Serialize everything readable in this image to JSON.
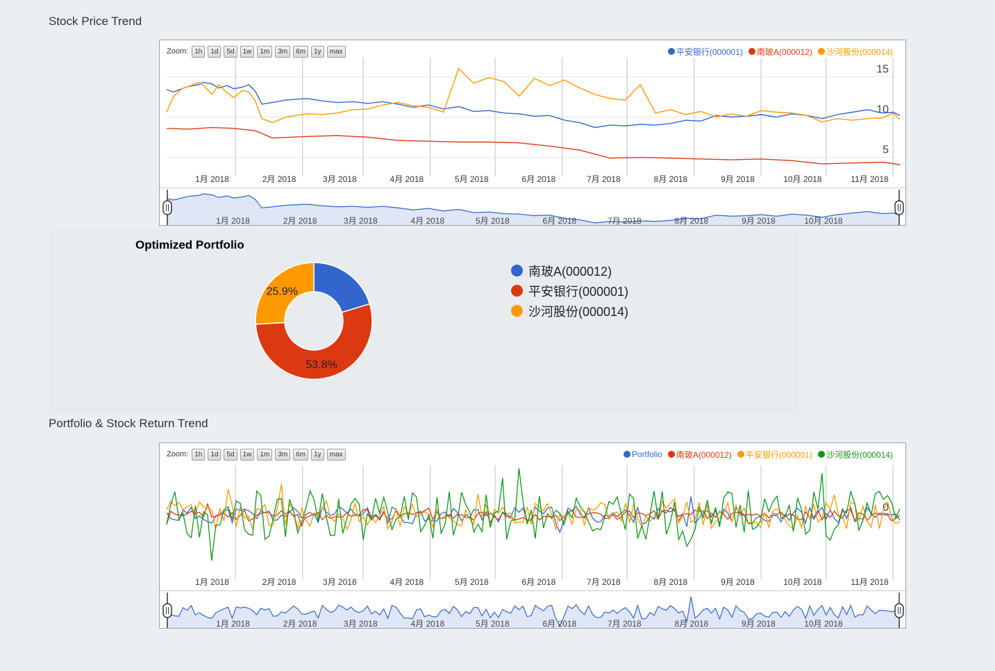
{
  "section1_title": "Stock Price Trend",
  "section2_title": "Portfolio & Stock Return Trend",
  "zoom": {
    "label": "Zoom:",
    "buttons": [
      "1h",
      "1d",
      "5d",
      "1w",
      "1m",
      "3m",
      "6m",
      "1y",
      "max"
    ]
  },
  "months": [
    "1月 2018",
    "2月 2018",
    "3月 2018",
    "4月 2018",
    "5月 2018",
    "6月 2018",
    "7月 2018",
    "8月 2018",
    "9月 2018",
    "10月 2018",
    "11月 2018"
  ],
  "colors": {
    "blue": "#3366cc",
    "red": "#dc3912",
    "orange": "#ff9900",
    "green": "#109618",
    "range_fill": "#dfe6f5"
  },
  "price_chart": {
    "legend": [
      {
        "label": "平安银行(000001)",
        "color": "#3366cc"
      },
      {
        "label": "南玻A(000012)",
        "color": "#dc3912"
      },
      {
        "label": "沙河股份(000014)",
        "color": "#ff9900"
      }
    ]
  },
  "pie": {
    "title": "Optimized Portfolio",
    "legend": [
      {
        "label": "南玻A(000012)",
        "color": "#3366cc"
      },
      {
        "label": "平安银行(000001)",
        "color": "#dc3912"
      },
      {
        "label": "沙河股份(000014)",
        "color": "#ff9900"
      }
    ]
  },
  "return_chart": {
    "legend": [
      {
        "label": "Portfolio",
        "color": "#3366cc"
      },
      {
        "label": "南玻A(000012)",
        "color": "#dc3912"
      },
      {
        "label": "平安银行(000001)",
        "color": "#ff9900"
      },
      {
        "label": "沙河股份(000014)",
        "color": "#109618"
      }
    ]
  },
  "chart_data": [
    {
      "type": "line",
      "title": "Stock Price Trend",
      "x_range": [
        "2017-12-19",
        "2018-11-23"
      ],
      "x_ticks": [
        "1月 2018",
        "2月 2018",
        "3月 2018",
        "4月 2018",
        "5月 2018",
        "6月 2018",
        "7月 2018",
        "8月 2018",
        "9月 2018",
        "10月 2018",
        "11月 2018"
      ],
      "y_ticks": [
        5,
        10,
        15
      ],
      "ylim": [
        3.5,
        16.5
      ],
      "series": [
        {
          "name": "平安银行(000001)",
          "color": "#3366cc",
          "x": [
            "2017-12-19",
            "2017-12-22",
            "2017-12-26",
            "2017-12-29",
            "2018-01-03",
            "2018-01-05",
            "2018-01-09",
            "2018-01-12",
            "2018-01-16",
            "2018-01-19",
            "2018-01-23",
            "2018-01-26",
            "2018-01-29",
            "2018-02-01",
            "2018-02-06",
            "2018-02-12",
            "2018-02-22",
            "2018-03-01",
            "2018-03-08",
            "2018-03-15",
            "2018-03-22",
            "2018-03-29",
            "2018-04-05",
            "2018-04-12",
            "2018-04-19",
            "2018-04-26",
            "2018-05-03",
            "2018-05-10",
            "2018-05-17",
            "2018-05-24",
            "2018-05-31",
            "2018-06-07",
            "2018-06-14",
            "2018-06-21",
            "2018-06-28",
            "2018-07-05",
            "2018-07-12",
            "2018-07-19",
            "2018-07-26",
            "2018-08-02",
            "2018-08-09",
            "2018-08-16",
            "2018-08-23",
            "2018-08-30",
            "2018-09-06",
            "2018-09-13",
            "2018-09-20",
            "2018-09-27",
            "2018-10-04",
            "2018-10-11",
            "2018-10-18",
            "2018-10-25",
            "2018-11-01",
            "2018-11-08",
            "2018-11-15",
            "2018-11-20",
            "2018-11-23"
          ],
          "values": [
            13.4,
            13.1,
            13.5,
            13.8,
            14.0,
            14.3,
            14.1,
            13.6,
            13.9,
            13.5,
            13.7,
            14.0,
            13.2,
            11.6,
            11.8,
            12.1,
            12.3,
            12.0,
            11.8,
            11.9,
            11.7,
            11.9,
            11.6,
            11.2,
            11.5,
            11.0,
            11.3,
            10.7,
            10.8,
            10.5,
            10.4,
            10.1,
            10.2,
            9.6,
            9.3,
            8.7,
            9.0,
            8.9,
            9.1,
            9.0,
            9.2,
            9.6,
            9.5,
            10.2,
            10.0,
            10.1,
            10.3,
            10.0,
            10.4,
            10.2,
            9.8,
            10.3,
            10.6,
            10.9,
            10.5,
            10.6,
            10.2
          ]
        },
        {
          "name": "南玻A(000012)",
          "color": "#dc3912",
          "x": [
            "2017-12-19",
            "2017-12-29",
            "2018-01-09",
            "2018-01-19",
            "2018-01-29",
            "2018-02-06",
            "2018-02-22",
            "2018-03-08",
            "2018-03-22",
            "2018-04-05",
            "2018-04-19",
            "2018-05-03",
            "2018-05-17",
            "2018-05-31",
            "2018-06-14",
            "2018-06-28",
            "2018-07-12",
            "2018-07-26",
            "2018-08-09",
            "2018-08-23",
            "2018-09-06",
            "2018-09-20",
            "2018-10-04",
            "2018-10-18",
            "2018-11-01",
            "2018-11-15",
            "2018-11-23"
          ],
          "values": [
            8.6,
            8.5,
            8.7,
            8.6,
            8.3,
            7.4,
            7.6,
            7.7,
            7.5,
            7.1,
            7.0,
            6.9,
            6.9,
            6.8,
            6.4,
            5.9,
            4.9,
            5.0,
            4.9,
            4.8,
            4.7,
            4.8,
            4.6,
            4.2,
            4.3,
            4.4,
            4.1
          ]
        },
        {
          "name": "沙河股份(000014)",
          "color": "#ff9900",
          "x": [
            "2017-12-19",
            "2017-12-22",
            "2017-12-26",
            "2017-12-29",
            "2018-01-03",
            "2018-01-05",
            "2018-01-09",
            "2018-01-12",
            "2018-01-16",
            "2018-01-19",
            "2018-01-23",
            "2018-01-26",
            "2018-01-29",
            "2018-02-01",
            "2018-02-06",
            "2018-02-12",
            "2018-02-22",
            "2018-03-01",
            "2018-03-08",
            "2018-03-15",
            "2018-03-22",
            "2018-03-29",
            "2018-04-05",
            "2018-04-12",
            "2018-04-19",
            "2018-04-26",
            "2018-05-03",
            "2018-05-10",
            "2018-05-17",
            "2018-05-24",
            "2018-05-31",
            "2018-06-07",
            "2018-06-14",
            "2018-06-21",
            "2018-06-28",
            "2018-07-05",
            "2018-07-12",
            "2018-07-19",
            "2018-07-26",
            "2018-08-02",
            "2018-08-09",
            "2018-08-16",
            "2018-08-23",
            "2018-08-30",
            "2018-09-06",
            "2018-09-13",
            "2018-09-20",
            "2018-09-27",
            "2018-10-04",
            "2018-10-11",
            "2018-10-18",
            "2018-10-25",
            "2018-11-01",
            "2018-11-08",
            "2018-11-15",
            "2018-11-20",
            "2018-11-23"
          ],
          "values": [
            10.6,
            12.5,
            13.5,
            13.8,
            14.3,
            13.9,
            12.8,
            14.0,
            13.0,
            12.4,
            13.3,
            13.1,
            12.0,
            9.8,
            9.3,
            10.0,
            10.4,
            10.3,
            10.5,
            10.9,
            11.0,
            11.5,
            11.8,
            11.4,
            11.2,
            10.6,
            16.0,
            14.2,
            14.9,
            14.4,
            12.6,
            14.8,
            13.9,
            14.6,
            13.6,
            12.8,
            12.3,
            12.1,
            14.0,
            10.5,
            10.9,
            10.3,
            10.7,
            10.0,
            10.4,
            10.1,
            10.8,
            10.6,
            10.5,
            10.2,
            9.4,
            9.8,
            9.6,
            9.8,
            9.9,
            10.5,
            9.7
          ]
        }
      ]
    },
    {
      "type": "pie",
      "title": "Optimized Portfolio",
      "categories": [
        "南玻A(000012)",
        "平安银行(000001)",
        "沙河股份(000014)"
      ],
      "values": [
        20.3,
        53.8,
        25.9
      ],
      "labels_shown": [
        "",
        "53.8%",
        "25.9%"
      ],
      "hole": 0.5,
      "legend_position": "right"
    },
    {
      "type": "line",
      "title": "Portfolio & Stock Return Trend",
      "x_range": [
        "2017-12-19",
        "2018-11-23"
      ],
      "x_ticks": [
        "1月 2018",
        "2月 2018",
        "3月 2018",
        "4月 2018",
        "5月 2018",
        "6月 2018",
        "7月 2018",
        "8月 2018",
        "9月 2018",
        "10月 2018",
        "11月 2018"
      ],
      "y_ticks": [
        0
      ],
      "ylim": [
        -0.08,
        0.06
      ],
      "series": [
        {
          "name": "Portfolio",
          "color": "#3366cc",
          "seed": 11,
          "amplitude": 0.012
        },
        {
          "name": "南玻A(000012)",
          "color": "#dc3912",
          "seed": 23,
          "amplitude": 0.008
        },
        {
          "name": "平安银行(000001)",
          "color": "#ff9900",
          "seed": 37,
          "amplitude": 0.02
        },
        {
          "name": "沙河股份(000014)",
          "color": "#109618",
          "seed": 53,
          "amplitude": 0.035
        }
      ]
    }
  ]
}
